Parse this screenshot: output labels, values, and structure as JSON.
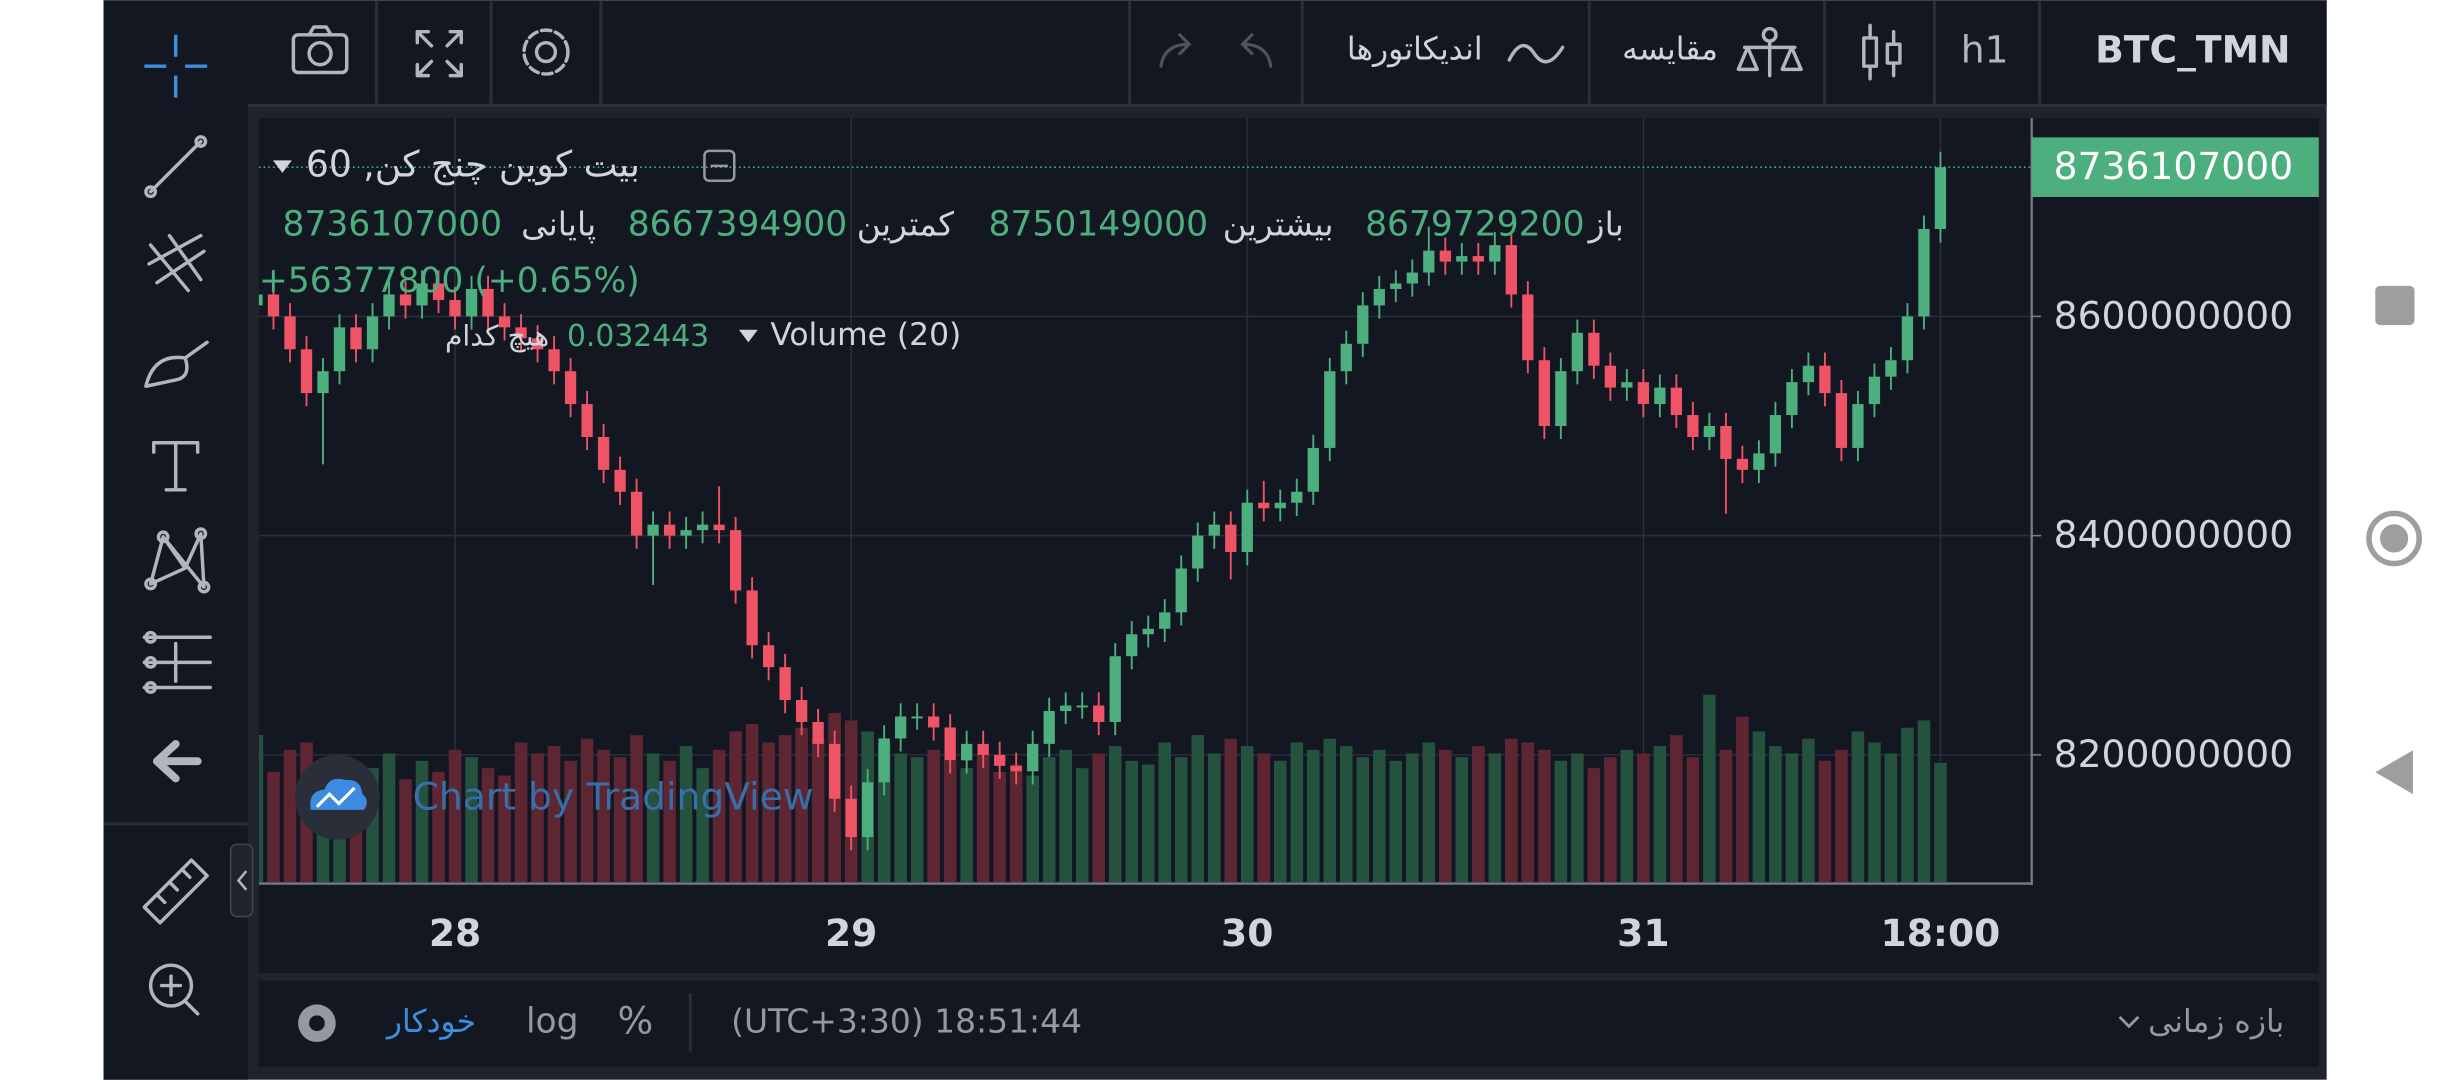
{
  "top_bar": {
    "symbol": "BTC_TMN",
    "interval": "h1",
    "compare": "مقایسه",
    "indicators": "اندیکاتورها"
  },
  "bottom_bar": {
    "range": "بازه زمانی",
    "clock": "(UTC+3:30) 18:51:44",
    "percent": "%",
    "log": "log",
    "auto": "خودکار"
  },
  "chart_data": {
    "type": "candlestick",
    "title": "بیت کوین چنج کن, 60",
    "open_label": "باز",
    "high_label": "بیشترین",
    "low_label": "کمترین",
    "close_label": "پایانی",
    "change_label": "+56377800 (+0.65%)",
    "volume_title": "Volume (20)",
    "volume_ma": "هیچ کدام",
    "watermark": "Chart by TradingView",
    "up_color": "#4caf7d",
    "down_color": "#ef5366",
    "volume_up_color": "#24523f",
    "volume_down_color": "#5e2632",
    "grid": true,
    "ylim": [
      8084000000,
      8781000000
    ],
    "yticks": [
      8200000000,
      8400000000,
      8600000000
    ],
    "vlim": [
      0,
      0.208
    ],
    "categories": [
      null,
      null,
      null,
      null,
      null,
      null,
      null,
      null,
      null,
      null,
      null,
      null,
      "28",
      null,
      null,
      null,
      null,
      null,
      null,
      null,
      null,
      null,
      null,
      null,
      null,
      null,
      null,
      null,
      null,
      null,
      null,
      null,
      null,
      null,
      null,
      null,
      "29",
      null,
      null,
      null,
      null,
      null,
      null,
      null,
      null,
      null,
      null,
      null,
      null,
      null,
      null,
      null,
      null,
      null,
      null,
      null,
      null,
      null,
      null,
      null,
      "30",
      null,
      null,
      null,
      null,
      null,
      null,
      null,
      null,
      null,
      null,
      null,
      null,
      null,
      null,
      null,
      null,
      null,
      null,
      null,
      null,
      null,
      null,
      null,
      "31",
      null,
      null,
      null,
      null,
      null,
      null,
      null,
      null,
      null,
      null,
      null,
      null,
      null,
      null,
      null,
      null,
      null,
      "18:00"
    ],
    "open": [
      8610000000,
      8620000000,
      8600000000,
      8570000000,
      8530000000,
      8550000000,
      8590000000,
      8570000000,
      8600000000,
      8620000000,
      8610000000,
      8630000000,
      8615000000,
      8600000000,
      8625000000,
      8600000000,
      8590000000,
      8580000000,
      8570000000,
      8550000000,
      8520000000,
      8490000000,
      8460000000,
      8440000000,
      8400000000,
      8410000000,
      8400000000,
      8405000000,
      8410000000,
      8405000000,
      8350000000,
      8300000000,
      8280000000,
      8250000000,
      8230000000,
      8210000000,
      8160000000,
      8125000000,
      8175000000,
      8215000000,
      8235000000,
      8235000000,
      8225000000,
      8195000000,
      8210000000,
      8200000000,
      8190000000,
      8185000000,
      8210000000,
      8240000000,
      8245000000,
      8245000000,
      8230000000,
      8290000000,
      8310000000,
      8315000000,
      8330000000,
      8370000000,
      8400000000,
      8410000000,
      8385000000,
      8430000000,
      8425000000,
      8430000000,
      8440000000,
      8480000000,
      8550000000,
      8575000000,
      8610000000,
      8625000000,
      8630000000,
      8640000000,
      8660000000,
      8650000000,
      8655000000,
      8650000000,
      8665000000,
      8620000000,
      8560000000,
      8500000000,
      8550000000,
      8585000000,
      8555000000,
      8535000000,
      8540000000,
      8520000000,
      8535000000,
      8510000000,
      8490000000,
      8500000000,
      8470000000,
      8460000000,
      8475000000,
      8510000000,
      8540000000,
      8555000000,
      8530000000,
      8480000000,
      8520000000,
      8545000000,
      8560000000,
      8600000000,
      8679729200
    ],
    "high": [
      8632000000,
      8632000000,
      8612000000,
      8582000000,
      8562000000,
      8602000000,
      8602000000,
      8612000000,
      8632000000,
      8632000000,
      8642000000,
      8642000000,
      8627000000,
      8637000000,
      8637000000,
      8612000000,
      8602000000,
      8592000000,
      8582000000,
      8562000000,
      8532000000,
      8502000000,
      8472000000,
      8452000000,
      8422000000,
      8422000000,
      8417000000,
      8422000000,
      8445000000,
      8417000000,
      8362000000,
      8312000000,
      8292000000,
      8262000000,
      8242000000,
      8222000000,
      8172000000,
      8187000000,
      8227000000,
      8247000000,
      8247000000,
      8247000000,
      8237000000,
      8222000000,
      8222000000,
      8212000000,
      8202000000,
      8222000000,
      8252000000,
      8257000000,
      8257000000,
      8257000000,
      8302000000,
      8322000000,
      8327000000,
      8342000000,
      8382000000,
      8412000000,
      8422000000,
      8422000000,
      8442000000,
      8450000000,
      8442000000,
      8452000000,
      8492000000,
      8562000000,
      8587000000,
      8622000000,
      8637000000,
      8642000000,
      8652000000,
      8682000000,
      8672000000,
      8667000000,
      8667000000,
      8677000000,
      8677000000,
      8632000000,
      8572000000,
      8562000000,
      8597000000,
      8597000000,
      8567000000,
      8552000000,
      8552000000,
      8547000000,
      8547000000,
      8522000000,
      8512000000,
      8512000000,
      8482000000,
      8487000000,
      8522000000,
      8552000000,
      8567000000,
      8567000000,
      8542000000,
      8532000000,
      8557000000,
      8572000000,
      8612000000,
      8692000000,
      8750149000
    ],
    "low": [
      8598000000,
      8588000000,
      8558000000,
      8518000000,
      8465000000,
      8538000000,
      8558000000,
      8558000000,
      8588000000,
      8598000000,
      8598000000,
      8603000000,
      8588000000,
      8588000000,
      8588000000,
      8578000000,
      8568000000,
      8558000000,
      8538000000,
      8508000000,
      8478000000,
      8448000000,
      8428000000,
      8388000000,
      8355000000,
      8388000000,
      8388000000,
      8393000000,
      8393000000,
      8338000000,
      8288000000,
      8268000000,
      8238000000,
      8218000000,
      8198000000,
      8148000000,
      8113000000,
      8113000000,
      8163000000,
      8203000000,
      8223000000,
      8213000000,
      8183000000,
      8183000000,
      8188000000,
      8178000000,
      8173000000,
      8173000000,
      8198000000,
      8228000000,
      8233000000,
      8218000000,
      8218000000,
      8278000000,
      8298000000,
      8303000000,
      8318000000,
      8358000000,
      8388000000,
      8360000000,
      8373000000,
      8413000000,
      8413000000,
      8418000000,
      8428000000,
      8468000000,
      8538000000,
      8563000000,
      8598000000,
      8613000000,
      8618000000,
      8628000000,
      8638000000,
      8638000000,
      8638000000,
      8638000000,
      8608000000,
      8548000000,
      8488000000,
      8488000000,
      8538000000,
      8543000000,
      8523000000,
      8523000000,
      8508000000,
      8508000000,
      8498000000,
      8478000000,
      8478000000,
      8420000000,
      8448000000,
      8448000000,
      8463000000,
      8498000000,
      8528000000,
      8518000000,
      8468000000,
      8468000000,
      8508000000,
      8533000000,
      8548000000,
      8588000000,
      8667394900
    ],
    "close": [
      8620000000,
      8600000000,
      8570000000,
      8530000000,
      8550000000,
      8590000000,
      8570000000,
      8600000000,
      8620000000,
      8610000000,
      8630000000,
      8615000000,
      8600000000,
      8625000000,
      8600000000,
      8590000000,
      8580000000,
      8570000000,
      8550000000,
      8520000000,
      8490000000,
      8460000000,
      8440000000,
      8400000000,
      8410000000,
      8400000000,
      8405000000,
      8410000000,
      8405000000,
      8350000000,
      8300000000,
      8280000000,
      8250000000,
      8230000000,
      8210000000,
      8160000000,
      8125000000,
      8175000000,
      8215000000,
      8235000000,
      8235000000,
      8225000000,
      8195000000,
      8210000000,
      8200000000,
      8190000000,
      8185000000,
      8210000000,
      8240000000,
      8245000000,
      8245000000,
      8230000000,
      8290000000,
      8310000000,
      8315000000,
      8330000000,
      8370000000,
      8400000000,
      8410000000,
      8385000000,
      8430000000,
      8425000000,
      8430000000,
      8440000000,
      8480000000,
      8550000000,
      8575000000,
      8610000000,
      8625000000,
      8630000000,
      8640000000,
      8660000000,
      8650000000,
      8655000000,
      8650000000,
      8665000000,
      8620000000,
      8560000000,
      8500000000,
      8550000000,
      8585000000,
      8555000000,
      8535000000,
      8540000000,
      8520000000,
      8535000000,
      8510000000,
      8490000000,
      8500000000,
      8470000000,
      8460000000,
      8475000000,
      8510000000,
      8540000000,
      8555000000,
      8530000000,
      8480000000,
      8520000000,
      8545000000,
      8560000000,
      8600000000,
      8679729200,
      8736107000
    ],
    "volume": [
      0.04,
      0.03,
      0.036,
      0.038,
      0.029,
      0.034,
      0.027,
      0.031,
      0.035,
      0.028,
      0.033,
      0.03,
      0.036,
      0.034,
      0.031,
      0.029,
      0.038,
      0.035,
      0.037,
      0.033,
      0.039,
      0.036,
      0.034,
      0.04,
      0.035,
      0.033,
      0.037,
      0.031,
      0.036,
      0.041,
      0.043,
      0.038,
      0.04,
      0.042,
      0.039,
      0.046,
      0.044,
      0.041,
      0.038,
      0.035,
      0.034,
      0.036,
      0.033,
      0.031,
      0.035,
      0.03,
      0.032,
      0.029,
      0.034,
      0.036,
      0.031,
      0.035,
      0.037,
      0.033,
      0.032,
      0.038,
      0.034,
      0.04,
      0.035,
      0.039,
      0.037,
      0.035,
      0.033,
      0.038,
      0.036,
      0.039,
      0.037,
      0.034,
      0.036,
      0.033,
      0.035,
      0.038,
      0.036,
      0.034,
      0.037,
      0.035,
      0.039,
      0.038,
      0.036,
      0.033,
      0.035,
      0.031,
      0.034,
      0.036,
      0.035,
      0.037,
      0.04,
      0.034,
      0.051,
      0.036,
      0.045,
      0.041,
      0.037,
      0.035,
      0.039,
      0.033,
      0.036,
      0.041,
      0.038,
      0.035,
      0.042,
      0.044,
      0.032443
    ]
  }
}
